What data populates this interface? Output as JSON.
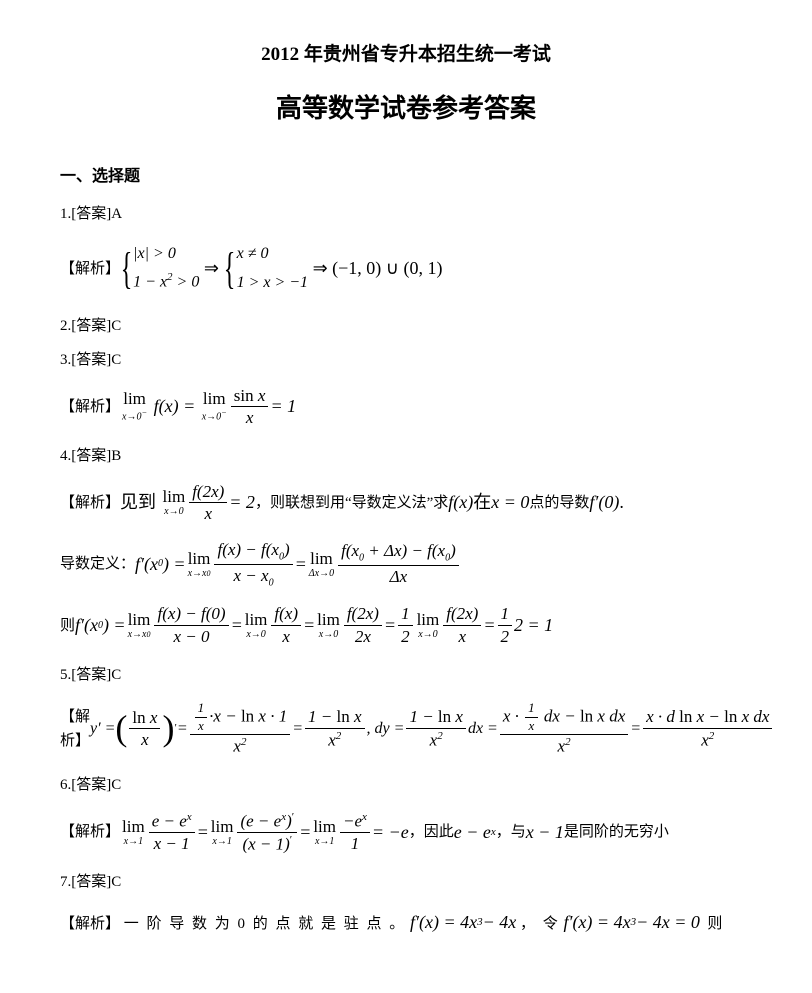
{
  "header": {
    "line1": "2012 年贵州省专升本招生统一考试",
    "line2": "高等数学试卷参考答案"
  },
  "section1_title": "一、选择题",
  "q1": {
    "ans": "1.[答案]A",
    "tag": "【解析】"
  },
  "q2": {
    "ans": "2.[答案]C"
  },
  "q3": {
    "ans": "3.[答案]C",
    "tag": "【解析】"
  },
  "q4": {
    "ans": "4.[答案]B",
    "tag": "【解析】",
    "text_mid": "，则联想到用“导数定义法”求",
    "text_mid2": "点的导数",
    "defn_label": "导数定义：",
    "then_label": "则"
  },
  "q5": {
    "ans": "5.[答案]C",
    "tag": "【解析】"
  },
  "q6": {
    "ans": "6.[答案]C",
    "tag": "【解析】",
    "tail": "，因此",
    "tail2": "，与",
    "tail3": "是同阶的无穷小"
  },
  "q7": {
    "ans": "7.[答案]C",
    "tag": "【解析】",
    "text1": "一 阶 导 数 为 0 的 点 就 是 驻 点 。",
    "text2": "， 令",
    "text3": "则"
  },
  "style": {
    "page_bg": "#ffffff",
    "text_color": "#000000",
    "body_fontsize": 15,
    "title1_fontsize": 19,
    "title2_fontsize": 26,
    "math_fontsize": 18
  }
}
